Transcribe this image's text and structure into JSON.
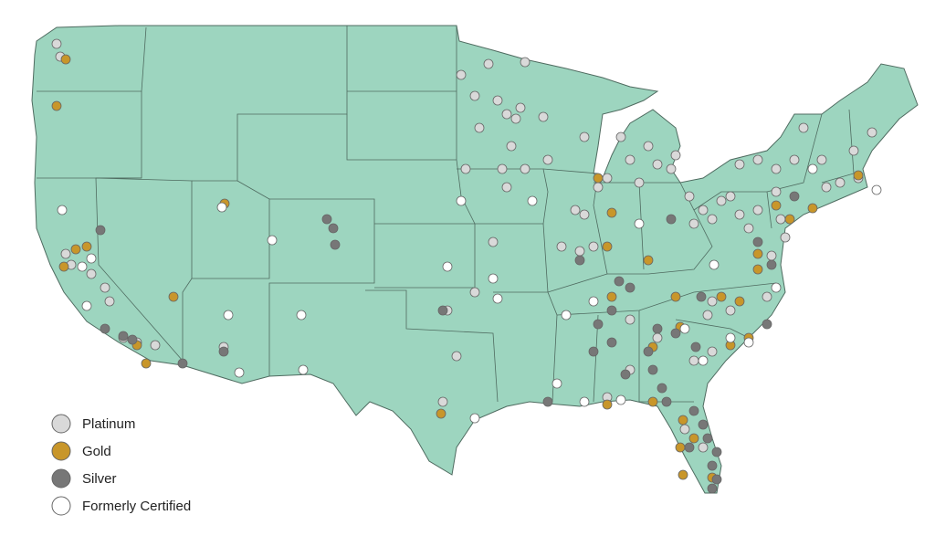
{
  "legend": {
    "items": [
      {
        "label": "Platinum",
        "color": "#d9d9d9"
      },
      {
        "label": "Gold",
        "color": "#c8962a"
      },
      {
        "label": "Silver",
        "color": "#777777"
      },
      {
        "label": "Formerly Certified",
        "color": "#ffffff"
      }
    ]
  }
}
